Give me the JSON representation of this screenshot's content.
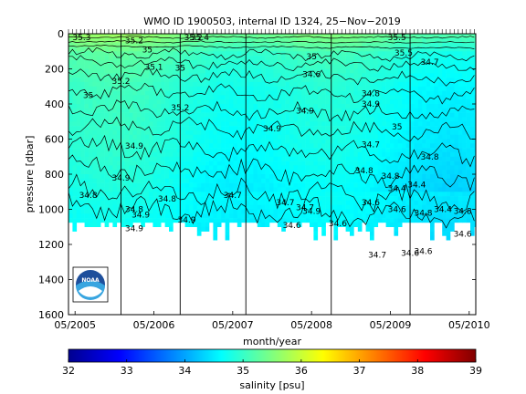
{
  "chart_data": {
    "type": "heatmap",
    "title": "WMO ID 1900503, internal ID 1324, 25−Nov−2019",
    "xlabel": "month/year",
    "ylabel": "pressure [dbar]",
    "x_ticks": [
      "05/2005",
      "05/2006",
      "05/2007",
      "05/2008",
      "05/2009",
      "05/2010"
    ],
    "y_ticks": [
      0,
      200,
      400,
      600,
      800,
      1000,
      1200,
      1400,
      1600
    ],
    "ylim": [
      1600,
      0
    ],
    "xlim": [
      "2005-04",
      "2010-06"
    ],
    "colorbar": {
      "label": "salinity [psu]",
      "min": 32,
      "max": 39,
      "ticks": [
        32,
        33,
        34,
        35,
        36,
        37,
        38,
        39
      ]
    },
    "year_markers": [
      "2005-12",
      "2006-09",
      "2007-07",
      "2008-08",
      "2009-08"
    ],
    "profile_depth_range": [
      1050,
      1170
    ],
    "salinity_profile": [
      {
        "pressure": 0,
        "salinity": 35.6
      },
      {
        "pressure": 50,
        "salinity": 35.4
      },
      {
        "pressure": 100,
        "salinity": 35.2
      },
      {
        "pressure": 200,
        "salinity": 35.1
      },
      {
        "pressure": 300,
        "salinity": 35.0
      },
      {
        "pressure": 450,
        "salinity": 34.95
      },
      {
        "pressure": 600,
        "salinity": 34.9
      },
      {
        "pressure": 800,
        "salinity": 34.8
      },
      {
        "pressure": 900,
        "salinity": 34.75
      },
      {
        "pressure": 1000,
        "salinity": 34.7
      },
      {
        "pressure": 1100,
        "salinity": 34.65
      },
      {
        "pressure": 1200,
        "salinity": 34.6
      }
    ],
    "contour_labels": [
      {
        "text": "35.3",
        "date": "2005-06",
        "pressure": 20
      },
      {
        "text": "35.2",
        "date": "2006-02",
        "pressure": 40
      },
      {
        "text": "35",
        "date": "2006-04",
        "pressure": 90
      },
      {
        "text": "35",
        "date": "2005-07",
        "pressure": 350
      },
      {
        "text": "35.2",
        "date": "2005-12",
        "pressure": 270
      },
      {
        "text": "35.1",
        "date": "2006-05",
        "pressure": 190
      },
      {
        "text": "35",
        "date": "2006-09",
        "pressure": 195
      },
      {
        "text": "35.2",
        "date": "2006-09",
        "pressure": 420
      },
      {
        "text": "34.9",
        "date": "2006-02",
        "pressure": 640
      },
      {
        "text": "34.9",
        "date": "2005-12",
        "pressure": 820
      },
      {
        "text": "34.8",
        "date": "2005-07",
        "pressure": 920
      },
      {
        "text": "34.8",
        "date": "2006-02",
        "pressure": 1000
      },
      {
        "text": "34.9",
        "date": "2006-03",
        "pressure": 1030
      },
      {
        "text": "34.9",
        "date": "2006-02",
        "pressure": 1110
      },
      {
        "text": "34.9",
        "date": "2006-10",
        "pressure": 1060
      },
      {
        "text": "34.8",
        "date": "2006-07",
        "pressure": 940
      },
      {
        "text": "34.7",
        "date": "2007-05",
        "pressure": 920
      },
      {
        "text": "34.9",
        "date": "2007-11",
        "pressure": 540
      },
      {
        "text": "34.7",
        "date": "2008-01",
        "pressure": 960
      },
      {
        "text": "34.9",
        "date": "2008-04",
        "pressure": 440
      },
      {
        "text": "34.6",
        "date": "2008-02",
        "pressure": 1090
      },
      {
        "text": "34.7",
        "date": "2008-04",
        "pressure": 990
      },
      {
        "text": "34.9",
        "date": "2008-05",
        "pressure": 1010
      },
      {
        "text": "34.6",
        "date": "2008-09",
        "pressure": 1080
      },
      {
        "text": "35",
        "date": "2008-05",
        "pressure": 130
      },
      {
        "text": "34.6",
        "date": "2008-05",
        "pressure": 230
      },
      {
        "text": "35.2",
        "date": "2006-11",
        "pressure": 20
      },
      {
        "text": "35.4",
        "date": "2006-12",
        "pressure": 20
      },
      {
        "text": "34.9",
        "date": "2009-02",
        "pressure": 400
      },
      {
        "text": "34.8",
        "date": "2009-02",
        "pressure": 340
      },
      {
        "text": "34.7",
        "date": "2009-02",
        "pressure": 630
      },
      {
        "text": "34.8",
        "date": "2009-01",
        "pressure": 780
      },
      {
        "text": "34.6",
        "date": "2009-02",
        "pressure": 960
      },
      {
        "text": "34.7",
        "date": "2009-03",
        "pressure": 1260
      },
      {
        "text": "34.6",
        "date": "2009-06",
        "pressure": 1000
      },
      {
        "text": "34.4",
        "date": "2009-06",
        "pressure": 880
      },
      {
        "text": "34.8",
        "date": "2009-05",
        "pressure": 810
      },
      {
        "text": "35",
        "date": "2009-06",
        "pressure": 530
      },
      {
        "text": "35.5",
        "date": "2009-06",
        "pressure": 20
      },
      {
        "text": "35.5",
        "date": "2009-07",
        "pressure": 110
      },
      {
        "text": "34.7",
        "date": "2009-11",
        "pressure": 160
      },
      {
        "text": "34.8",
        "date": "2009-11",
        "pressure": 700
      },
      {
        "text": "34.4",
        "date": "2009-09",
        "pressure": 860
      },
      {
        "text": "34.6",
        "date": "2009-08",
        "pressure": 1250
      },
      {
        "text": "34.6",
        "date": "2009-10",
        "pressure": 1240
      },
      {
        "text": "34.8",
        "date": "2009-10",
        "pressure": 1020
      },
      {
        "text": "34.4",
        "date": "2010-01",
        "pressure": 1000
      },
      {
        "text": "34.6",
        "date": "2010-04",
        "pressure": 1140
      },
      {
        "text": "34.8",
        "date": "2010-04",
        "pressure": 1010
      }
    ]
  }
}
